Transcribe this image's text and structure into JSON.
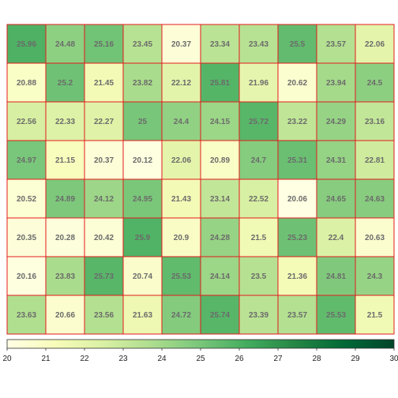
{
  "chart_data": {
    "type": "heatmap",
    "rows": 8,
    "cols": 10,
    "values": [
      [
        25.96,
        24.48,
        25.16,
        23.45,
        20.37,
        23.34,
        23.43,
        25.5,
        23.57,
        22.06
      ],
      [
        20.88,
        25.2,
        21.45,
        23.82,
        22.12,
        25.81,
        21.96,
        20.62,
        23.94,
        24.5
      ],
      [
        22.56,
        22.33,
        22.27,
        25,
        24.4,
        24.15,
        25.72,
        23.22,
        24.29,
        23.16
      ],
      [
        24.97,
        21.15,
        20.37,
        20.12,
        22.06,
        20.89,
        24.7,
        25.31,
        24.31,
        22.81
      ],
      [
        20.52,
        24.89,
        24.12,
        24.95,
        21.43,
        23.14,
        22.52,
        20.06,
        24.65,
        24.63
      ],
      [
        20.35,
        20.28,
        20.42,
        25.9,
        20.9,
        24.28,
        21.5,
        25.23,
        22.4,
        20.63
      ],
      [
        20.16,
        23.83,
        25.73,
        20.74,
        25.53,
        24.14,
        23.5,
        21.36,
        24.81,
        24.3
      ],
      [
        23.63,
        20.66,
        23.56,
        21.63,
        24.72,
        25.74,
        23.39,
        23.57,
        25.53,
        21.5
      ]
    ],
    "labels": [
      [
        "25.96",
        "24.48",
        "25.16",
        "23.45",
        "20.37",
        "23.34",
        "23.43",
        "25.5",
        "23.57",
        "22.06"
      ],
      [
        "20.88",
        "25.2",
        "21.45",
        "23.82",
        "22.12",
        "25.81",
        "21.96",
        "20.62",
        "23.94",
        "24.5"
      ],
      [
        "22.56",
        "22.33",
        "22.27",
        "25",
        "24.4",
        "24.15",
        "25.72",
        "23.22",
        "24.29",
        "23.16"
      ],
      [
        "24.97",
        "21.15",
        "20.37",
        "20.12",
        "22.06",
        "20.89",
        "24.7",
        "25.31",
        "24.31",
        "22.81"
      ],
      [
        "20.52",
        "24.89",
        "24.12",
        "24.95",
        "21.43",
        "23.14",
        "22.52",
        "20.06",
        "24.65",
        "24.63"
      ],
      [
        "20.35",
        "20.28",
        "20.42",
        "25.9",
        "20.9",
        "24.28",
        "21.5",
        "25.23",
        "22.4",
        "20.63"
      ],
      [
        "20.16",
        "23.83",
        "25.73",
        "20.74",
        "25.53",
        "24.14",
        "23.5",
        "21.36",
        "24.81",
        "24.3"
      ],
      [
        "23.63",
        "20.66",
        "23.56",
        "21.63",
        "24.72",
        "25.74",
        "23.39",
        "23.57",
        "25.53",
        "21.5"
      ]
    ],
    "colorbar": {
      "range": [
        20,
        30
      ],
      "ticks": [
        "20",
        "21",
        "22",
        "23",
        "24",
        "25",
        "26",
        "27",
        "28",
        "29",
        "30"
      ],
      "colors": [
        "#ffffe5",
        "#f7fcb9",
        "#d9f0a3",
        "#addd8e",
        "#78c679",
        "#41ab5d",
        "#238443",
        "#006837",
        "#004529"
      ]
    },
    "cell_border_color": "#e31a1c",
    "label_color": "#6b6b6b",
    "colorbar_position": "bottom"
  }
}
